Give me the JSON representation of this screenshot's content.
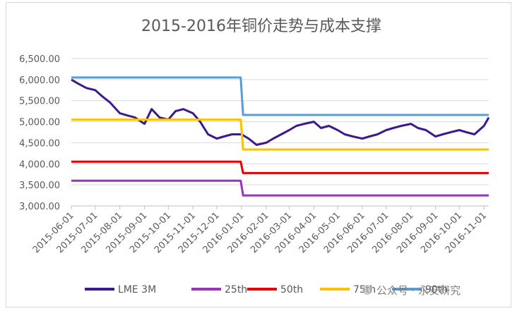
{
  "chart_data": {
    "type": "line",
    "title": "2015-2016年铜价走势与成本支撑",
    "xlabel": "",
    "ylabel": "",
    "ylim": [
      3000,
      6500
    ],
    "y_ticks": [
      "6,500.00",
      "6,000.00",
      "5,500.00",
      "5,000.00",
      "4,500.00",
      "4,000.00",
      "3,500.00",
      "3,000.00"
    ],
    "x_ticks": [
      "2015-06-01",
      "2015-07-01",
      "2015-08-01",
      "2015-09-01",
      "2015-10-01",
      "2015-11-01",
      "2015-12-01",
      "2016-01-01",
      "2016-02-01",
      "2016-03-01",
      "2016-04-01",
      "2016-05-01",
      "2016-06-01",
      "2016-07-01",
      "2016-08-01",
      "2016-09-01",
      "2016-10-01",
      "2016-11-01"
    ],
    "x_range": [
      "2015-06-01",
      "2016-11-07"
    ],
    "grid": "horizontal",
    "legend_position": "bottom",
    "series": [
      {
        "name": "LME 3M",
        "color": "#3d1a8c",
        "width": 3,
        "x": [
          "2015-06-01",
          "2015-06-10",
          "2015-06-20",
          "2015-07-01",
          "2015-07-10",
          "2015-07-20",
          "2015-08-01",
          "2015-08-10",
          "2015-08-20",
          "2015-09-01",
          "2015-09-10",
          "2015-09-20",
          "2015-10-01",
          "2015-10-10",
          "2015-10-20",
          "2015-11-01",
          "2015-11-10",
          "2015-11-20",
          "2015-12-01",
          "2015-12-10",
          "2015-12-20",
          "2016-01-01",
          "2016-01-10",
          "2016-01-20",
          "2016-02-01",
          "2016-02-10",
          "2016-02-20",
          "2016-03-01",
          "2016-03-10",
          "2016-03-20",
          "2016-04-01",
          "2016-04-10",
          "2016-04-20",
          "2016-05-01",
          "2016-05-10",
          "2016-05-20",
          "2016-06-01",
          "2016-06-10",
          "2016-06-20",
          "2016-07-01",
          "2016-07-10",
          "2016-07-20",
          "2016-08-01",
          "2016-08-10",
          "2016-08-20",
          "2016-09-01",
          "2016-09-10",
          "2016-09-20",
          "2016-10-01",
          "2016-10-10",
          "2016-10-20",
          "2016-11-01",
          "2016-11-07"
        ],
        "values": [
          6000,
          5900,
          5800,
          5750,
          5600,
          5450,
          5200,
          5150,
          5100,
          4950,
          5300,
          5100,
          5050,
          5250,
          5300,
          5200,
          5000,
          4700,
          4600,
          4650,
          4700,
          4700,
          4600,
          4450,
          4500,
          4600,
          4700,
          4800,
          4900,
          4950,
          5000,
          4850,
          4900,
          4800,
          4700,
          4650,
          4600,
          4650,
          4700,
          4800,
          4850,
          4900,
          4950,
          4850,
          4800,
          4650,
          4700,
          4750,
          4800,
          4750,
          4700,
          4900,
          5100
        ]
      },
      {
        "name": "25th",
        "color": "#9933b7",
        "width": 3,
        "x": [
          "2015-06-01",
          "2015-12-31",
          "2016-01-03",
          "2016-11-07"
        ],
        "values": [
          3600,
          3600,
          3250,
          3250
        ]
      },
      {
        "name": "50th",
        "color": "#e60000",
        "width": 3,
        "x": [
          "2015-06-01",
          "2015-12-31",
          "2016-01-03",
          "2016-11-07"
        ],
        "values": [
          4050,
          4050,
          3780,
          3780
        ]
      },
      {
        "name": "75th",
        "color": "#ffc000",
        "width": 3,
        "x": [
          "2015-06-01",
          "2015-12-31",
          "2016-01-03",
          "2016-11-07"
        ],
        "values": [
          5050,
          5050,
          4340,
          4340
        ]
      },
      {
        "name": "90th",
        "color": "#5b9bd5",
        "width": 3,
        "x": [
          "2015-06-01",
          "2015-12-31",
          "2016-01-03",
          "2016-11-07"
        ],
        "values": [
          6050,
          6050,
          5160,
          5160
        ]
      }
    ]
  },
  "watermark": {
    "text": "公众号 · 永安研究"
  }
}
